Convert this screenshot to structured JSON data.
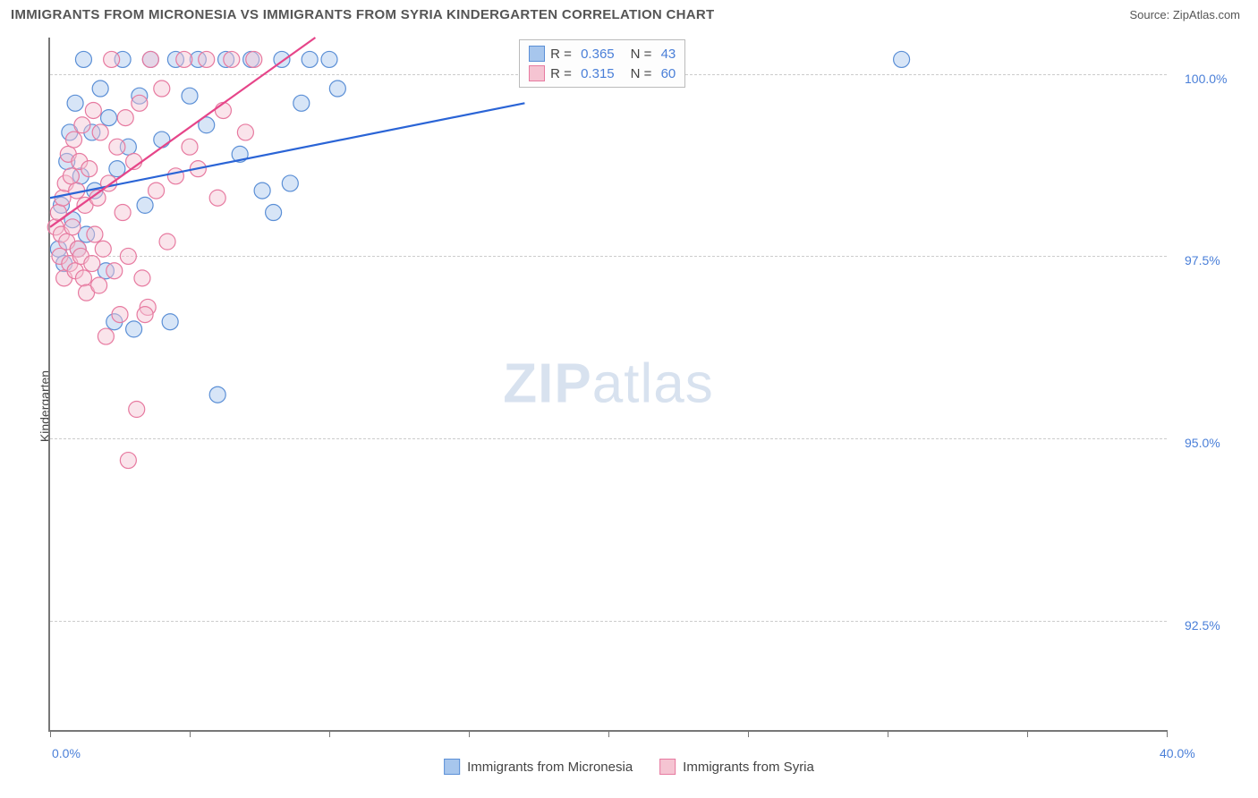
{
  "title": "IMMIGRANTS FROM MICRONESIA VS IMMIGRANTS FROM SYRIA KINDERGARTEN CORRELATION CHART",
  "source": "Source: ZipAtlas.com",
  "watermark_bold": "ZIP",
  "watermark_light": "atlas",
  "y_axis_label": "Kindergarten",
  "chart": {
    "type": "scatter",
    "background_color": "#ffffff",
    "grid_color": "#cccccc",
    "axis_color": "#777777",
    "label_color": "#4a7fd8",
    "xlim": [
      0.0,
      40.0
    ],
    "ylim": [
      91.0,
      100.5
    ],
    "x_ticks": [
      0.0,
      5.0,
      10.0,
      15.0,
      20.0,
      25.0,
      30.0,
      35.0,
      40.0
    ],
    "x_tick_labels": {
      "0": "0.0%",
      "40": "40.0%"
    },
    "y_gridlines": [
      92.5,
      95.0,
      97.5,
      100.0
    ],
    "y_tick_labels": [
      "92.5%",
      "95.0%",
      "97.5%",
      "100.0%"
    ],
    "marker_radius": 9,
    "marker_opacity": 0.45,
    "line_width": 2.2,
    "series": [
      {
        "name": "Immigrants from Micronesia",
        "fill": "#a7c6ed",
        "stroke": "#5b8fd6",
        "line_color": "#2a64d6",
        "r_value": "0.365",
        "n_value": "43",
        "trend": {
          "x1": 0.0,
          "y1": 98.3,
          "x2": 17.0,
          "y2": 99.6
        },
        "points": [
          [
            0.3,
            97.6
          ],
          [
            0.4,
            98.2
          ],
          [
            0.5,
            97.4
          ],
          [
            0.6,
            98.8
          ],
          [
            0.7,
            99.2
          ],
          [
            0.8,
            98.0
          ],
          [
            0.9,
            99.6
          ],
          [
            1.0,
            97.6
          ],
          [
            1.1,
            98.6
          ],
          [
            1.2,
            100.2
          ],
          [
            1.3,
            97.8
          ],
          [
            1.5,
            99.2
          ],
          [
            1.6,
            98.4
          ],
          [
            1.8,
            99.8
          ],
          [
            2.0,
            97.3
          ],
          [
            2.1,
            99.4
          ],
          [
            2.3,
            96.6
          ],
          [
            2.4,
            98.7
          ],
          [
            2.6,
            100.2
          ],
          [
            2.8,
            99.0
          ],
          [
            3.0,
            96.5
          ],
          [
            3.2,
            99.7
          ],
          [
            3.4,
            98.2
          ],
          [
            3.6,
            100.2
          ],
          [
            4.0,
            99.1
          ],
          [
            4.3,
            96.6
          ],
          [
            4.5,
            100.2
          ],
          [
            5.0,
            99.7
          ],
          [
            5.3,
            100.2
          ],
          [
            5.6,
            99.3
          ],
          [
            6.0,
            95.6
          ],
          [
            6.3,
            100.2
          ],
          [
            6.8,
            98.9
          ],
          [
            7.2,
            100.2
          ],
          [
            7.6,
            98.4
          ],
          [
            8.0,
            98.1
          ],
          [
            8.3,
            100.2
          ],
          [
            8.6,
            98.5
          ],
          [
            9.0,
            99.6
          ],
          [
            9.3,
            100.2
          ],
          [
            10.0,
            100.2
          ],
          [
            10.3,
            99.8
          ],
          [
            30.5,
            100.2
          ]
        ]
      },
      {
        "name": "Immigrants from Syria",
        "fill": "#f5c4d2",
        "stroke": "#e77aa0",
        "line_color": "#e64589",
        "r_value": "0.315",
        "n_value": "60",
        "trend": {
          "x1": 0.0,
          "y1": 97.9,
          "x2": 9.5,
          "y2": 100.5
        },
        "points": [
          [
            0.2,
            97.9
          ],
          [
            0.3,
            98.1
          ],
          [
            0.35,
            97.5
          ],
          [
            0.4,
            97.8
          ],
          [
            0.45,
            98.3
          ],
          [
            0.5,
            97.2
          ],
          [
            0.55,
            98.5
          ],
          [
            0.6,
            97.7
          ],
          [
            0.65,
            98.9
          ],
          [
            0.7,
            97.4
          ],
          [
            0.75,
            98.6
          ],
          [
            0.8,
            97.9
          ],
          [
            0.85,
            99.1
          ],
          [
            0.9,
            97.3
          ],
          [
            0.95,
            98.4
          ],
          [
            1.0,
            97.6
          ],
          [
            1.05,
            98.8
          ],
          [
            1.1,
            97.5
          ],
          [
            1.15,
            99.3
          ],
          [
            1.2,
            97.2
          ],
          [
            1.25,
            98.2
          ],
          [
            1.3,
            97.0
          ],
          [
            1.4,
            98.7
          ],
          [
            1.5,
            97.4
          ],
          [
            1.55,
            99.5
          ],
          [
            1.6,
            97.8
          ],
          [
            1.7,
            98.3
          ],
          [
            1.75,
            97.1
          ],
          [
            1.8,
            99.2
          ],
          [
            1.9,
            97.6
          ],
          [
            2.0,
            96.4
          ],
          [
            2.1,
            98.5
          ],
          [
            2.2,
            100.2
          ],
          [
            2.3,
            97.3
          ],
          [
            2.4,
            99.0
          ],
          [
            2.5,
            96.7
          ],
          [
            2.6,
            98.1
          ],
          [
            2.7,
            99.4
          ],
          [
            2.8,
            97.5
          ],
          [
            3.0,
            98.8
          ],
          [
            3.1,
            95.4
          ],
          [
            3.2,
            99.6
          ],
          [
            3.3,
            97.2
          ],
          [
            3.5,
            96.8
          ],
          [
            3.6,
            100.2
          ],
          [
            3.8,
            98.4
          ],
          [
            4.0,
            99.8
          ],
          [
            4.2,
            97.7
          ],
          [
            4.5,
            98.6
          ],
          [
            4.8,
            100.2
          ],
          [
            5.0,
            99.0
          ],
          [
            5.3,
            98.7
          ],
          [
            5.6,
            100.2
          ],
          [
            6.0,
            98.3
          ],
          [
            6.2,
            99.5
          ],
          [
            6.5,
            100.2
          ],
          [
            7.0,
            99.2
          ],
          [
            7.3,
            100.2
          ],
          [
            2.8,
            94.7
          ],
          [
            3.4,
            96.7
          ]
        ]
      }
    ]
  },
  "legend_box": {
    "r_prefix": "R =",
    "n_prefix": "N ="
  },
  "bottom_legend": {
    "items": [
      "Immigrants from Micronesia",
      "Immigrants from Syria"
    ]
  }
}
